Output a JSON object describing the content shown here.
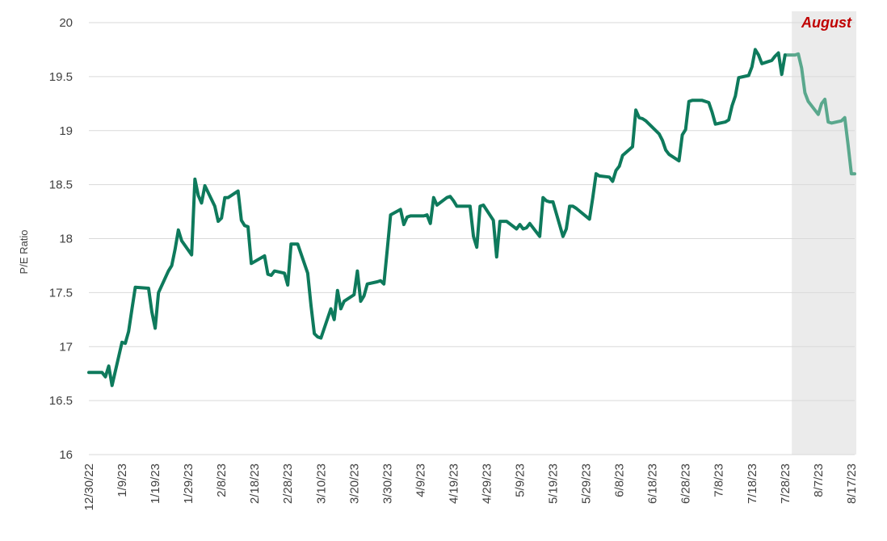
{
  "chart_data": {
    "type": "line",
    "title": "",
    "xlabel": "",
    "ylabel": "P/E Ratio",
    "ylim": [
      16,
      20
    ],
    "yticks": [
      "16",
      "16.5",
      "17",
      "17.5",
      "18",
      "18.5",
      "19",
      "19.5",
      "20"
    ],
    "xticks": [
      "12/30/22",
      "1/9/23",
      "1/19/23",
      "1/29/23",
      "2/8/23",
      "2/18/23",
      "2/28/23",
      "3/10/23",
      "3/20/23",
      "3/30/23",
      "4/9/23",
      "4/19/23",
      "4/29/23",
      "5/9/23",
      "5/19/23",
      "5/29/23",
      "6/8/23",
      "6/18/23",
      "6/28/23",
      "7/8/23",
      "7/18/23",
      "7/28/23",
      "8/7/23",
      "8/17/23"
    ],
    "grid": true,
    "colors": {
      "line": "#0e7a5c",
      "line_highlight": "#5aa88d",
      "shade": "#ebebeb",
      "annotation": "#c00000",
      "grid": "#d9d9d9"
    },
    "annotation": {
      "text": "August",
      "range": [
        "7/31/23",
        "8/18/23"
      ]
    },
    "series": [
      {
        "x": [
          "12/30/22",
          "1/3/23",
          "1/4/23",
          "1/5/23",
          "1/6/23",
          "1/9/23",
          "1/10/23",
          "1/11/23",
          "1/12/23",
          "1/13/23",
          "1/17/23",
          "1/18/23",
          "1/19/23",
          "1/20/23",
          "1/23/23",
          "1/24/23",
          "1/25/23",
          "1/26/23",
          "1/27/23",
          "1/30/23",
          "1/31/23",
          "2/1/23",
          "2/2/23",
          "2/3/23",
          "2/6/23",
          "2/7/23",
          "2/8/23",
          "2/9/23",
          "2/10/23",
          "2/13/23",
          "2/14/23",
          "2/15/23",
          "2/16/23",
          "2/17/23",
          "2/21/23",
          "2/22/23",
          "2/23/23",
          "2/24/23",
          "2/27/23",
          "2/28/23",
          "3/1/23",
          "3/2/23",
          "3/3/23",
          "3/6/23",
          "3/7/23",
          "3/8/23",
          "3/9/23",
          "3/10/23",
          "3/13/23",
          "3/14/23",
          "3/15/23",
          "3/16/23",
          "3/17/23",
          "3/20/23",
          "3/21/23",
          "3/22/23",
          "3/23/23",
          "3/24/23",
          "3/27/23",
          "3/28/23",
          "3/29/23",
          "3/30/23",
          "3/31/23",
          "4/3/23",
          "4/4/23",
          "4/5/23",
          "4/6/23",
          "4/10/23",
          "4/11/23",
          "4/12/23",
          "4/13/23",
          "4/14/23",
          "4/17/23",
          "4/18/23",
          "4/19/23",
          "4/20/23",
          "4/21/23",
          "4/24/23",
          "4/25/23",
          "4/26/23",
          "4/27/23",
          "4/28/23",
          "5/1/23",
          "5/2/23",
          "5/3/23",
          "5/4/23",
          "5/5/23",
          "5/8/23",
          "5/9/23",
          "5/10/23",
          "5/11/23",
          "5/12/23",
          "5/15/23",
          "5/16/23",
          "5/17/23",
          "5/18/23",
          "5/19/23",
          "5/22/23",
          "5/23/23",
          "5/24/23",
          "5/25/23",
          "5/26/23",
          "5/30/23",
          "5/31/23",
          "6/1/23",
          "6/2/23",
          "6/5/23",
          "6/6/23",
          "6/7/23",
          "6/8/23",
          "6/9/23",
          "6/12/23",
          "6/13/23",
          "6/14/23",
          "6/15/23",
          "6/16/23",
          "6/20/23",
          "6/21/23",
          "6/22/23",
          "6/23/23",
          "6/26/23",
          "6/27/23",
          "6/28/23",
          "6/29/23",
          "6/30/23",
          "7/3/23",
          "7/5/23",
          "7/6/23",
          "7/7/23",
          "7/10/23",
          "7/11/23",
          "7/12/23",
          "7/13/23",
          "7/14/23",
          "7/17/23",
          "7/18/23",
          "7/19/23",
          "7/20/23",
          "7/21/23",
          "7/24/23",
          "7/25/23",
          "7/26/23",
          "7/27/23",
          "7/28/23",
          "7/31/23",
          "8/1/23",
          "8/2/23",
          "8/3/23",
          "8/4/23",
          "8/7/23",
          "8/8/23",
          "8/9/23",
          "8/10/23",
          "8/11/23",
          "8/14/23",
          "8/15/23",
          "8/16/23",
          "8/17/23",
          "8/18/23"
        ],
        "values": [
          16.76,
          16.76,
          16.72,
          16.82,
          16.64,
          17.04,
          17.03,
          17.14,
          17.35,
          17.55,
          17.54,
          17.32,
          17.17,
          17.5,
          17.7,
          17.75,
          17.9,
          18.08,
          17.98,
          17.85,
          18.55,
          18.4,
          18.33,
          18.49,
          18.3,
          18.16,
          18.19,
          18.38,
          18.38,
          18.44,
          18.17,
          18.12,
          18.11,
          17.77,
          17.84,
          17.67,
          17.66,
          17.7,
          17.68,
          17.57,
          17.95,
          17.95,
          17.95,
          17.68,
          17.38,
          17.12,
          17.09,
          17.08,
          17.35,
          17.25,
          17.52,
          17.35,
          17.42,
          17.48,
          17.7,
          17.42,
          17.47,
          17.58,
          17.6,
          17.61,
          17.58,
          17.9,
          18.22,
          18.27,
          18.13,
          18.2,
          18.21,
          18.21,
          18.22,
          18.14,
          18.38,
          18.31,
          18.38,
          18.39,
          18.35,
          18.3,
          18.3,
          18.3,
          18.02,
          17.92,
          18.3,
          18.31,
          18.17,
          17.83,
          18.16,
          18.16,
          18.16,
          18.09,
          18.13,
          18.09,
          18.1,
          18.14,
          18.02,
          18.38,
          18.35,
          18.34,
          18.34,
          18.02,
          18.09,
          18.3,
          18.3,
          18.28,
          18.18,
          18.38,
          18.6,
          18.58,
          18.57,
          18.53,
          18.63,
          18.67,
          18.77,
          18.85,
          19.19,
          19.12,
          19.11,
          19.09,
          18.97,
          18.91,
          18.82,
          18.78,
          18.72,
          18.96,
          19.01,
          19.27,
          19.28,
          19.28,
          19.26,
          19.17,
          19.06,
          19.08,
          19.1,
          19.23,
          19.32,
          19.49,
          19.51,
          19.59,
          19.75,
          19.7,
          19.62,
          19.65,
          19.69,
          19.72,
          19.52,
          19.7,
          19.7,
          19.71,
          19.58,
          19.35,
          19.27,
          19.15,
          19.25,
          19.29,
          19.08,
          19.07,
          19.09,
          19.12,
          18.87,
          18.6,
          18.6
        ]
      }
    ]
  }
}
